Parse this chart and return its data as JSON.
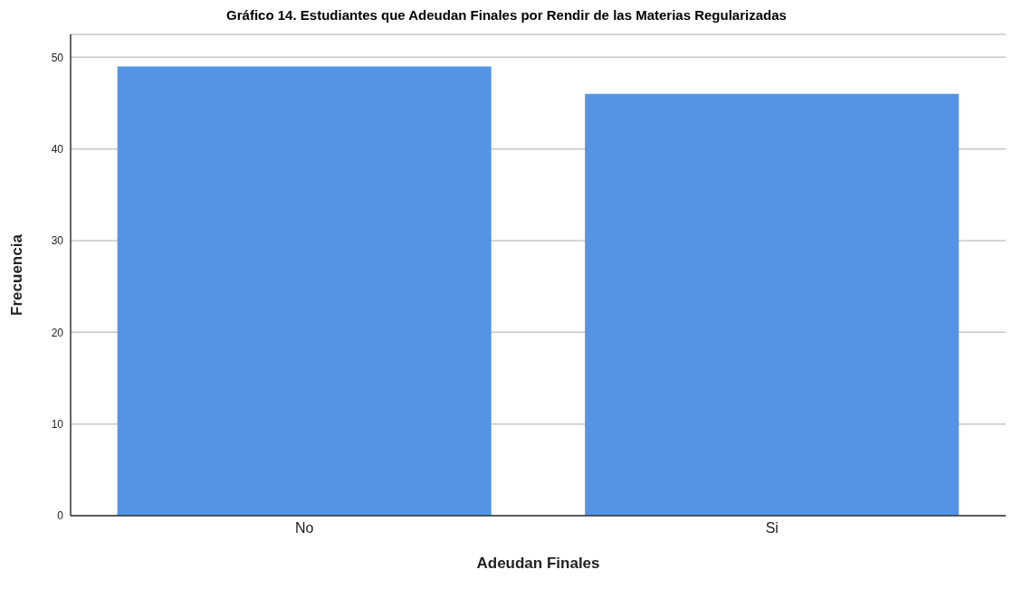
{
  "chart_data": {
    "type": "bar",
    "title": "Gráfico 14. Estudiantes que Adeudan Finales por Rendir de las Materias Regularizadas",
    "xlabel": "Adeudan Finales",
    "ylabel": "Frecuencia",
    "categories": [
      "No",
      "Si"
    ],
    "values": [
      49,
      46
    ],
    "color": "#5594e4",
    "ylim": [
      0,
      52.5
    ],
    "yticks": [
      0,
      10,
      20,
      30,
      40,
      50
    ],
    "grid": "y"
  }
}
